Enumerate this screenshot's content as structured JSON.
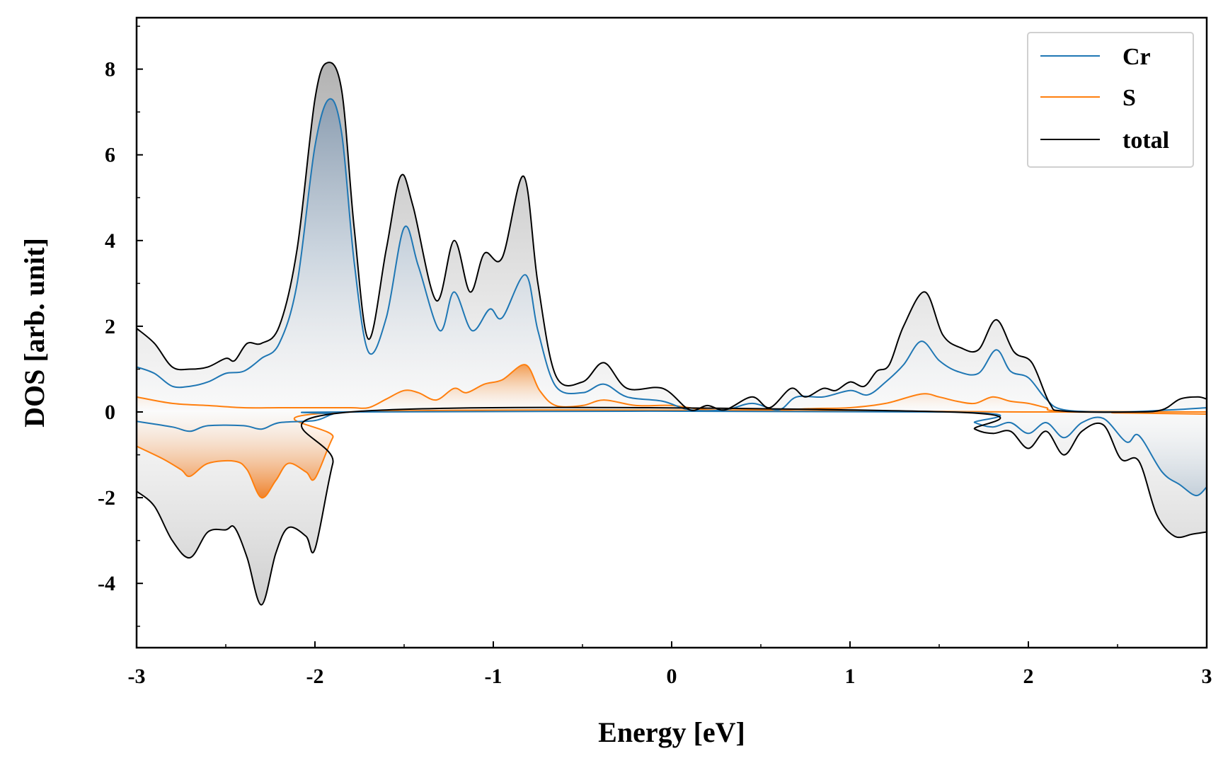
{
  "chart_data": {
    "type": "line",
    "xlabel": "Energy [eV]",
    "ylabel": "DOS [arb. unit]",
    "xlim": [
      -3,
      3
    ],
    "ylim": [
      -5.5,
      9.2
    ],
    "xticks": [
      -3,
      -2,
      -1,
      0,
      1,
      2,
      3
    ],
    "xtick_labels": [
      "-3",
      "-2",
      "-1",
      "0",
      "1",
      "2",
      "3"
    ],
    "yticks": [
      -4,
      -2,
      0,
      2,
      4,
      6,
      8
    ],
    "ytick_labels": [
      "-4",
      "-2",
      "0",
      "2",
      "4",
      "6",
      "8"
    ],
    "legend_position": "top-right",
    "grid": false,
    "colors": {
      "Cr": "#1f77b4",
      "S": "#ff7f0e",
      "total": "#000000",
      "total_fill": "#d9d9d9"
    },
    "series": [
      {
        "name": "Cr",
        "up": [
          [
            -3.0,
            1.05
          ],
          [
            -2.9,
            0.9
          ],
          [
            -2.8,
            0.6
          ],
          [
            -2.7,
            0.6
          ],
          [
            -2.6,
            0.7
          ],
          [
            -2.5,
            0.9
          ],
          [
            -2.4,
            0.95
          ],
          [
            -2.3,
            1.25
          ],
          [
            -2.2,
            1.6
          ],
          [
            -2.1,
            3.0
          ],
          [
            -2.0,
            6.2
          ],
          [
            -1.92,
            7.3
          ],
          [
            -1.85,
            6.5
          ],
          [
            -1.78,
            3.5
          ],
          [
            -1.7,
            1.4
          ],
          [
            -1.6,
            2.2
          ],
          [
            -1.5,
            4.3
          ],
          [
            -1.42,
            3.4
          ],
          [
            -1.3,
            1.9
          ],
          [
            -1.22,
            2.8
          ],
          [
            -1.12,
            1.9
          ],
          [
            -1.02,
            2.4
          ],
          [
            -0.95,
            2.2
          ],
          [
            -0.82,
            3.2
          ],
          [
            -0.75,
            1.9
          ],
          [
            -0.65,
            0.6
          ],
          [
            -0.5,
            0.45
          ],
          [
            -0.38,
            0.65
          ],
          [
            -0.25,
            0.35
          ],
          [
            -0.05,
            0.25
          ],
          [
            0.1,
            0.05
          ],
          [
            0.3,
            0.05
          ],
          [
            0.45,
            0.2
          ],
          [
            0.6,
            0.05
          ],
          [
            0.7,
            0.35
          ],
          [
            0.85,
            0.35
          ],
          [
            1.0,
            0.5
          ],
          [
            1.1,
            0.4
          ],
          [
            1.2,
            0.7
          ],
          [
            1.3,
            1.1
          ],
          [
            1.4,
            1.65
          ],
          [
            1.5,
            1.2
          ],
          [
            1.6,
            0.95
          ],
          [
            1.72,
            0.9
          ],
          [
            1.82,
            1.45
          ],
          [
            1.9,
            0.95
          ],
          [
            2.0,
            0.8
          ],
          [
            2.1,
            0.3
          ],
          [
            2.2,
            0.05
          ],
          [
            2.5,
            0.0
          ],
          [
            2.8,
            0.05
          ],
          [
            3.0,
            0.1
          ]
        ],
        "down": [
          [
            -3.0,
            -0.22
          ],
          [
            -2.8,
            -0.35
          ],
          [
            -2.7,
            -0.45
          ],
          [
            -2.6,
            -0.32
          ],
          [
            -2.4,
            -0.32
          ],
          [
            -2.3,
            -0.4
          ],
          [
            -2.2,
            -0.25
          ],
          [
            -2.0,
            -0.2
          ],
          [
            -1.9,
            -0.05
          ],
          [
            -1.8,
            0.0
          ],
          [
            1.55,
            0.0
          ],
          [
            1.7,
            -0.25
          ],
          [
            1.8,
            -0.35
          ],
          [
            1.9,
            -0.25
          ],
          [
            2.0,
            -0.5
          ],
          [
            2.1,
            -0.25
          ],
          [
            2.2,
            -0.6
          ],
          [
            2.3,
            -0.25
          ],
          [
            2.42,
            -0.15
          ],
          [
            2.55,
            -0.7
          ],
          [
            2.62,
            -0.55
          ],
          [
            2.75,
            -1.4
          ],
          [
            2.85,
            -1.7
          ],
          [
            2.94,
            -1.95
          ],
          [
            3.0,
            -1.75
          ]
        ]
      },
      {
        "name": "S",
        "up": [
          [
            -3.0,
            0.35
          ],
          [
            -2.8,
            0.2
          ],
          [
            -2.6,
            0.15
          ],
          [
            -2.4,
            0.1
          ],
          [
            -2.2,
            0.1
          ],
          [
            -2.0,
            0.1
          ],
          [
            -1.8,
            0.1
          ],
          [
            -1.7,
            0.1
          ],
          [
            -1.6,
            0.3
          ],
          [
            -1.5,
            0.5
          ],
          [
            -1.42,
            0.45
          ],
          [
            -1.32,
            0.28
          ],
          [
            -1.22,
            0.55
          ],
          [
            -1.15,
            0.45
          ],
          [
            -1.05,
            0.65
          ],
          [
            -0.95,
            0.75
          ],
          [
            -0.82,
            1.1
          ],
          [
            -0.74,
            0.5
          ],
          [
            -0.65,
            0.15
          ],
          [
            -0.5,
            0.15
          ],
          [
            -0.38,
            0.28
          ],
          [
            -0.2,
            0.15
          ],
          [
            0.0,
            0.15
          ],
          [
            0.2,
            0.05
          ],
          [
            0.45,
            0.05
          ],
          [
            0.6,
            0.05
          ],
          [
            0.8,
            0.08
          ],
          [
            1.0,
            0.1
          ],
          [
            1.2,
            0.2
          ],
          [
            1.4,
            0.42
          ],
          [
            1.5,
            0.35
          ],
          [
            1.6,
            0.25
          ],
          [
            1.7,
            0.2
          ],
          [
            1.8,
            0.35
          ],
          [
            1.9,
            0.25
          ],
          [
            2.0,
            0.2
          ],
          [
            2.1,
            0.1
          ],
          [
            2.2,
            0.02
          ],
          [
            3.0,
            0.0
          ]
        ],
        "down": [
          [
            -3.0,
            -0.8
          ],
          [
            -2.85,
            -1.1
          ],
          [
            -2.75,
            -1.35
          ],
          [
            -2.7,
            -1.5
          ],
          [
            -2.6,
            -1.2
          ],
          [
            -2.45,
            -1.15
          ],
          [
            -2.38,
            -1.35
          ],
          [
            -2.3,
            -2.0
          ],
          [
            -2.22,
            -1.6
          ],
          [
            -2.15,
            -1.2
          ],
          [
            -2.05,
            -1.4
          ],
          [
            -2.0,
            -1.55
          ],
          [
            -1.9,
            -0.6
          ],
          [
            -1.8,
            0.0
          ],
          [
            2.1,
            0.0
          ],
          [
            2.5,
            -0.02
          ],
          [
            3.0,
            -0.05
          ]
        ]
      },
      {
        "name": "total",
        "up": [
          [
            -3.0,
            1.95
          ],
          [
            -2.9,
            1.6
          ],
          [
            -2.8,
            1.05
          ],
          [
            -2.7,
            1.0
          ],
          [
            -2.6,
            1.05
          ],
          [
            -2.5,
            1.25
          ],
          [
            -2.45,
            1.2
          ],
          [
            -2.38,
            1.6
          ],
          [
            -2.3,
            1.6
          ],
          [
            -2.2,
            2.0
          ],
          [
            -2.1,
            3.8
          ],
          [
            -2.0,
            7.3
          ],
          [
            -1.93,
            8.15
          ],
          [
            -1.85,
            7.5
          ],
          [
            -1.78,
            4.3
          ],
          [
            -1.7,
            1.7
          ],
          [
            -1.6,
            3.8
          ],
          [
            -1.52,
            5.5
          ],
          [
            -1.45,
            4.8
          ],
          [
            -1.32,
            2.6
          ],
          [
            -1.22,
            4.0
          ],
          [
            -1.13,
            2.8
          ],
          [
            -1.05,
            3.7
          ],
          [
            -0.95,
            3.6
          ],
          [
            -0.83,
            5.5
          ],
          [
            -0.75,
            3.0
          ],
          [
            -0.65,
            0.85
          ],
          [
            -0.5,
            0.7
          ],
          [
            -0.38,
            1.15
          ],
          [
            -0.25,
            0.55
          ],
          [
            -0.05,
            0.55
          ],
          [
            0.1,
            0.05
          ],
          [
            0.2,
            0.15
          ],
          [
            0.3,
            0.05
          ],
          [
            0.45,
            0.35
          ],
          [
            0.55,
            0.1
          ],
          [
            0.67,
            0.55
          ],
          [
            0.75,
            0.35
          ],
          [
            0.85,
            0.55
          ],
          [
            0.92,
            0.5
          ],
          [
            1.0,
            0.7
          ],
          [
            1.08,
            0.6
          ],
          [
            1.15,
            0.95
          ],
          [
            1.22,
            1.1
          ],
          [
            1.3,
            2.0
          ],
          [
            1.42,
            2.8
          ],
          [
            1.52,
            1.8
          ],
          [
            1.62,
            1.5
          ],
          [
            1.72,
            1.45
          ],
          [
            1.82,
            2.15
          ],
          [
            1.92,
            1.4
          ],
          [
            2.02,
            1.15
          ],
          [
            2.12,
            0.2
          ],
          [
            2.2,
            0.02
          ],
          [
            2.6,
            0.0
          ],
          [
            2.75,
            0.05
          ],
          [
            2.85,
            0.3
          ],
          [
            2.95,
            0.35
          ],
          [
            3.0,
            0.3
          ]
        ],
        "down": [
          [
            -3.0,
            -1.85
          ],
          [
            -2.9,
            -2.2
          ],
          [
            -2.8,
            -3.0
          ],
          [
            -2.7,
            -3.4
          ],
          [
            -2.6,
            -2.8
          ],
          [
            -2.5,
            -2.75
          ],
          [
            -2.45,
            -2.7
          ],
          [
            -2.38,
            -3.4
          ],
          [
            -2.3,
            -4.5
          ],
          [
            -2.22,
            -3.3
          ],
          [
            -2.15,
            -2.7
          ],
          [
            -2.05,
            -2.9
          ],
          [
            -2.0,
            -3.2
          ],
          [
            -1.9,
            -1.2
          ],
          [
            -1.8,
            0.0
          ],
          [
            1.55,
            0.0
          ],
          [
            1.7,
            -0.4
          ],
          [
            1.8,
            -0.5
          ],
          [
            1.9,
            -0.45
          ],
          [
            2.0,
            -0.85
          ],
          [
            2.1,
            -0.45
          ],
          [
            2.2,
            -1.0
          ],
          [
            2.3,
            -0.45
          ],
          [
            2.42,
            -0.3
          ],
          [
            2.52,
            -1.1
          ],
          [
            2.62,
            -1.15
          ],
          [
            2.72,
            -2.4
          ],
          [
            2.82,
            -2.9
          ],
          [
            2.92,
            -2.85
          ],
          [
            3.0,
            -2.8
          ]
        ]
      }
    ]
  }
}
